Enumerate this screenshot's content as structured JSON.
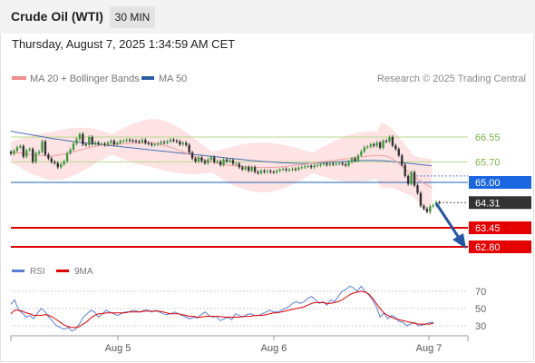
{
  "header": {
    "title": "Crude Oil (WTI)",
    "timeframe": "30 MIN",
    "datetime": "Thursday, August 7, 2025 1:34:59 AM CET"
  },
  "legend": {
    "items": [
      {
        "label": "MA 20 + Bollinger Bands",
        "color": "#f28b8b"
      },
      {
        "label": "MA 50",
        "color": "#2b5da8"
      }
    ],
    "credit": "Research © 2025 Trading Central"
  },
  "rsi_legend": {
    "items": [
      {
        "label": "RSI",
        "color": "#5b7fd6"
      },
      {
        "label": "9MA",
        "color": "#e00000"
      }
    ]
  },
  "chart_data": [
    {
      "type": "candlestick",
      "x_ticks": [
        "Aug 5",
        "Aug 6",
        "Aug 7"
      ],
      "y_range": [
        62.5,
        67.3
      ],
      "grid": false,
      "levels": [
        {
          "label": "66.55",
          "value": 66.55,
          "kind": "resistance",
          "color": "#9acb5e"
        },
        {
          "label": "65.70",
          "value": 65.7,
          "kind": "resistance",
          "color": "#9acb5e"
        },
        {
          "label": "65.00",
          "value": 65.0,
          "kind": "pivot",
          "color": "#1f5fb5"
        },
        {
          "label": "64.31",
          "value": 64.31,
          "kind": "last-price",
          "color": "#333333"
        },
        {
          "label": "63.45",
          "value": 63.45,
          "kind": "support",
          "color": "#e00000"
        },
        {
          "label": "62.80",
          "value": 62.8,
          "kind": "support",
          "color": "#e00000"
        }
      ],
      "closes": [
        65.98,
        66.08,
        66.2,
        66.24,
        65.88,
        66.1,
        66.14,
        65.7,
        66.0,
        66.05,
        66.4,
        65.95,
        65.82,
        65.7,
        65.66,
        65.52,
        65.62,
        65.72,
        66.0,
        66.12,
        66.32,
        66.48,
        66.65,
        66.3,
        66.28,
        66.55,
        66.32,
        66.36,
        66.32,
        66.32,
        66.28,
        66.36,
        66.42,
        66.3,
        66.35,
        66.42,
        66.42,
        66.45,
        66.43,
        66.42,
        66.4,
        66.38,
        66.45,
        66.35,
        66.32,
        66.28,
        66.3,
        66.32,
        66.38,
        66.35,
        66.4,
        66.46,
        66.42,
        66.4,
        66.3,
        66.35,
        66.28,
        66.02,
        65.82,
        65.72,
        65.85,
        65.73,
        65.66,
        65.78,
        65.86,
        65.7,
        65.72,
        65.6,
        65.78,
        65.72,
        65.76,
        65.64,
        65.64,
        65.52,
        65.45,
        65.52,
        65.4,
        65.52,
        65.36,
        65.32,
        65.4,
        65.36,
        65.39,
        65.36,
        65.35,
        65.4,
        65.44,
        65.46,
        65.42,
        65.43,
        65.46,
        65.44,
        65.5,
        65.52,
        65.55,
        65.56,
        65.52,
        65.58,
        65.58,
        65.62,
        65.64,
        65.6,
        65.64,
        65.62,
        65.64,
        65.66,
        65.62,
        65.58,
        65.7,
        65.82,
        65.75,
        65.92,
        66.06,
        66.2,
        66.22,
        66.3,
        66.25,
        66.36,
        66.18,
        66.42,
        66.4,
        66.55,
        66.26,
        66.14,
        65.92,
        65.6,
        65.22,
        64.95,
        65.35,
        64.9,
        64.64,
        64.2,
        64.1,
        64.0,
        64.18,
        64.22,
        64.32,
        64.31
      ],
      "ma20": [
        66.05,
        66.02,
        66.0,
        65.98,
        65.95,
        65.94,
        65.93,
        65.92,
        65.9,
        65.9,
        65.92,
        65.95,
        65.98,
        66.02,
        66.06,
        66.1,
        66.14,
        66.18,
        66.22,
        66.25,
        66.27,
        66.29,
        66.3,
        66.31,
        66.32,
        66.33,
        66.33,
        66.34,
        66.34,
        66.35,
        66.35,
        66.34,
        66.32,
        66.28,
        66.24,
        66.2,
        66.14,
        66.08,
        66.02,
        65.96,
        65.9,
        65.84,
        65.79,
        65.74,
        65.7,
        65.66,
        65.63,
        65.6,
        65.58,
        65.56,
        65.55,
        65.54,
        65.53,
        65.52,
        65.51,
        65.51,
        65.51,
        65.51,
        65.52,
        65.53,
        65.54,
        65.56,
        65.58,
        65.6,
        65.62,
        65.64,
        65.66,
        65.68,
        65.7,
        65.72,
        65.74,
        65.76,
        65.78,
        65.8,
        65.82,
        65.84,
        65.86,
        65.88,
        65.9,
        65.91,
        65.92,
        65.92,
        65.9,
        65.85,
        65.75,
        65.62,
        65.48,
        65.35,
        65.22,
        65.1,
        65.0,
        64.9,
        64.82
      ],
      "ma50": [
        66.75,
        66.7,
        66.65,
        66.6,
        66.55,
        66.5,
        66.46,
        66.42,
        66.38,
        66.35,
        66.32,
        66.29,
        66.26,
        66.23,
        66.2,
        66.17,
        66.14,
        66.11,
        66.08,
        66.05,
        66.02,
        65.99,
        65.96,
        65.93,
        65.9,
        65.87,
        65.84,
        65.81,
        65.78,
        65.75,
        65.73,
        65.71,
        65.69,
        65.67,
        65.66,
        65.65,
        65.65,
        65.66,
        65.67,
        65.69,
        65.71,
        65.73,
        65.74,
        65.75,
        65.75,
        65.74,
        65.72,
        65.69,
        65.66,
        65.63,
        65.6,
        65.57
      ]
    },
    {
      "type": "line",
      "title": "RSI",
      "y_ticks": [
        70,
        50,
        30
      ],
      "y_range": [
        20,
        80
      ],
      "series": [
        {
          "name": "RSI",
          "color": "#5b7fd6",
          "values": [
            55,
            60,
            48,
            45,
            40,
            42,
            38,
            45,
            50,
            46,
            40,
            35,
            30,
            28,
            26,
            28,
            24,
            26,
            32,
            40,
            44,
            48,
            46,
            40,
            44,
            48,
            46,
            44,
            42,
            44,
            46,
            46,
            48,
            47,
            46,
            48,
            48,
            46,
            48,
            46,
            44,
            43,
            44,
            46,
            44,
            42,
            40,
            38,
            40,
            39,
            43,
            46,
            42,
            40,
            41,
            36,
            38,
            40,
            37,
            44,
            42,
            40,
            43,
            44,
            42,
            42,
            44,
            46,
            48,
            46,
            46,
            48,
            50,
            52,
            56,
            58,
            56,
            58,
            62,
            64,
            60,
            56,
            58,
            54,
            60,
            58,
            64,
            70,
            72,
            76,
            74,
            70,
            76,
            70,
            66,
            60,
            52,
            40,
            45,
            38,
            42,
            40,
            35,
            34,
            30,
            32,
            34,
            30,
            31,
            32,
            34,
            34
          ]
        },
        {
          "name": "9MA",
          "color": "#e00000",
          "values": [
            44,
            48,
            48,
            47,
            45,
            44,
            42,
            42,
            42,
            43,
            42,
            40,
            37,
            34,
            31,
            29,
            28,
            28,
            29,
            32,
            35,
            39,
            42,
            44,
            44,
            45,
            45,
            45,
            45,
            45,
            45,
            46,
            46,
            46,
            46,
            47,
            47,
            47,
            47,
            47,
            46,
            45,
            44,
            44,
            44,
            43,
            42,
            41,
            41,
            40,
            40,
            41,
            41,
            41,
            41,
            41,
            40,
            40,
            40,
            40,
            40,
            41,
            41,
            41,
            42,
            42,
            42,
            43,
            44,
            45,
            45,
            46,
            47,
            48,
            49,
            50,
            51,
            52,
            54,
            56,
            57,
            57,
            57,
            56,
            56,
            57,
            58,
            60,
            63,
            66,
            68,
            69,
            70,
            69,
            67,
            62,
            56,
            50,
            45,
            42,
            40,
            38,
            37,
            36,
            35,
            34,
            33,
            32,
            32,
            32,
            32,
            33
          ]
        }
      ]
    }
  ]
}
